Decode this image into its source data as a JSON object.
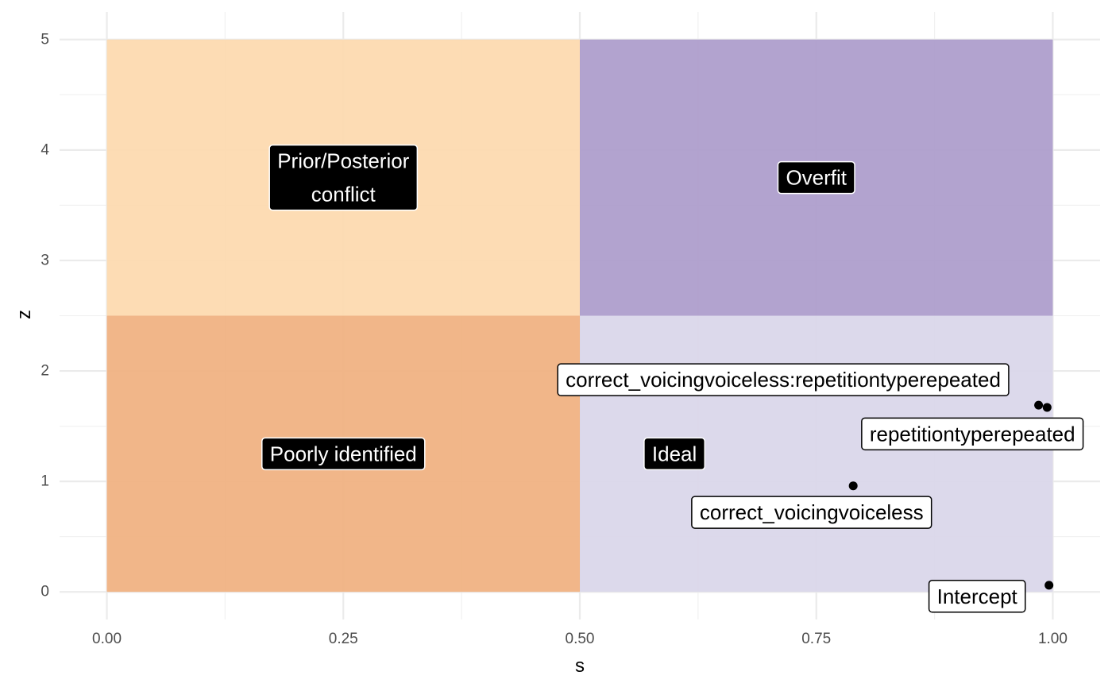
{
  "chart_data": {
    "type": "scatter",
    "title": "",
    "xlabel": "s",
    "ylabel": "z",
    "xlim": [
      -0.05,
      1.05
    ],
    "ylim": [
      -0.25,
      5.25
    ],
    "x_ticks": [
      0.0,
      0.25,
      0.5,
      0.75,
      1.0
    ],
    "x_tick_labels": [
      "0.00",
      "0.25",
      "0.50",
      "0.75",
      "1.00"
    ],
    "y_ticks": [
      0,
      1,
      2,
      3,
      4,
      5
    ],
    "y_tick_labels": [
      "0",
      "1",
      "2",
      "3",
      "4",
      "5"
    ],
    "grid": true,
    "regions": [
      {
        "label": "Prior/Posterior conflict",
        "lines": [
          "Prior/Posterior",
          "conflict"
        ],
        "x": [
          0,
          0.5
        ],
        "y": [
          2.5,
          5
        ],
        "color": "#fdd9ae",
        "label_at": [
          0.25,
          3.75
        ]
      },
      {
        "label": "Overfit",
        "lines": [
          "Overfit"
        ],
        "x": [
          0.5,
          1.0
        ],
        "y": [
          2.5,
          5
        ],
        "color": "#ab9bcb",
        "label_at": [
          0.75,
          3.75
        ]
      },
      {
        "label": "Poorly identified",
        "lines": [
          "Poorly identified"
        ],
        "x": [
          0,
          0.5
        ],
        "y": [
          0,
          2.5
        ],
        "color": "#f0b07f",
        "label_at": [
          0.25,
          1.25
        ]
      },
      {
        "label": "Ideal",
        "lines": [
          "Ideal"
        ],
        "x": [
          0.5,
          1.0
        ],
        "y": [
          0,
          2.5
        ],
        "color": "#d9d6e9",
        "label_at": [
          0.6,
          1.25
        ]
      }
    ],
    "points": [
      {
        "name": "correct_voicingvoiceless:repetitiontyperepeated",
        "x": 0.985,
        "y": 1.69,
        "label_at": [
          0.715,
          1.92
        ]
      },
      {
        "name": "repetitiontyperepeated",
        "x": 0.994,
        "y": 1.67,
        "label_at": [
          0.915,
          1.43
        ]
      },
      {
        "name": "correct_voicingvoiceless",
        "x": 0.789,
        "y": 0.96,
        "label_at": [
          0.745,
          0.72
        ]
      },
      {
        "name": "Intercept",
        "x": 0.996,
        "y": 0.06,
        "label_at": [
          0.92,
          -0.04
        ]
      }
    ]
  }
}
